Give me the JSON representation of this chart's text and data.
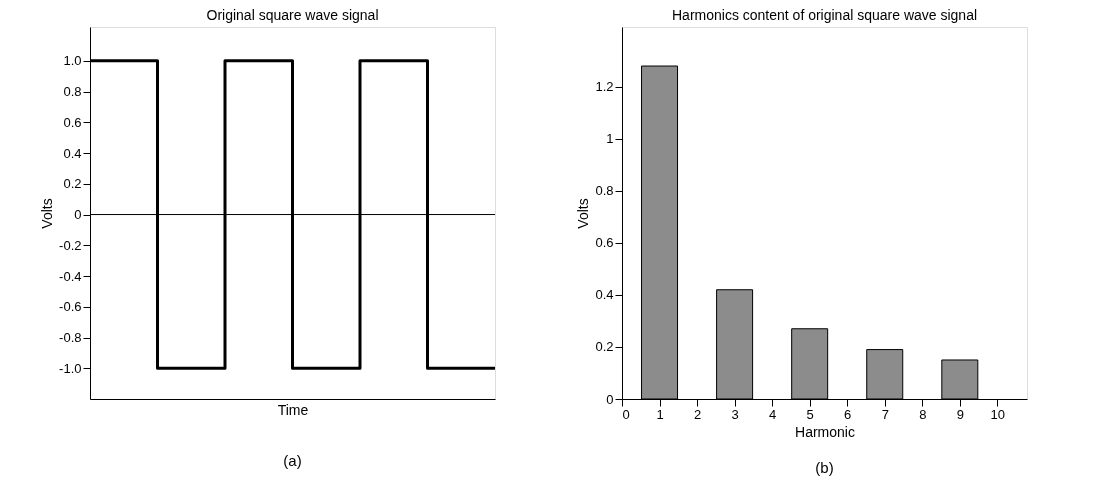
{
  "chart_data": [
    {
      "type": "step",
      "title": "Original square wave signal",
      "xlabel": "Time",
      "ylabel": "Volts",
      "categories": [
        null,
        null,
        null,
        null,
        null,
        null,
        null
      ],
      "series": [
        {
          "color": "#000000",
          "values": [
            1,
            -1,
            1,
            -1,
            1,
            -1,
            -1
          ]
        }
      ],
      "ylim": [
        -1.2,
        1.22
      ],
      "yticks": [
        {
          "value": 1,
          "label": "1.0"
        },
        0.8,
        0.6,
        0.4,
        0.2,
        0,
        -0.2,
        -0.4,
        -0.6,
        -0.8,
        {
          "value": -1,
          "label": "-1.0"
        }
      ],
      "ref_lines": [
        {
          "axis": "y",
          "value": 0,
          "color": "#000000"
        }
      ],
      "tick_labels": "y",
      "grid": false,
      "annotations": [
        "(a)"
      ]
    },
    {
      "type": "bar",
      "title": "Harmonics content of original square wave signal",
      "xlabel": "Harmonic",
      "ylabel": "Volts",
      "x": [
        1,
        3,
        5,
        7,
        9
      ],
      "series": [
        {
          "color": "#8c8c8c",
          "values": [
            1.28,
            0.42,
            0.27,
            0.19,
            0.15
          ]
        }
      ],
      "xlim": [
        0,
        10.79
      ],
      "xticks": [
        0,
        1,
        2,
        3,
        4,
        5,
        6,
        7,
        8,
        9,
        10
      ],
      "ylim": [
        0,
        1.43
      ],
      "yticks": [
        0,
        0.2,
        0.4,
        0.6,
        0.8,
        1,
        1.2
      ],
      "grid": false,
      "annotations": [
        "(b)"
      ]
    }
  ]
}
